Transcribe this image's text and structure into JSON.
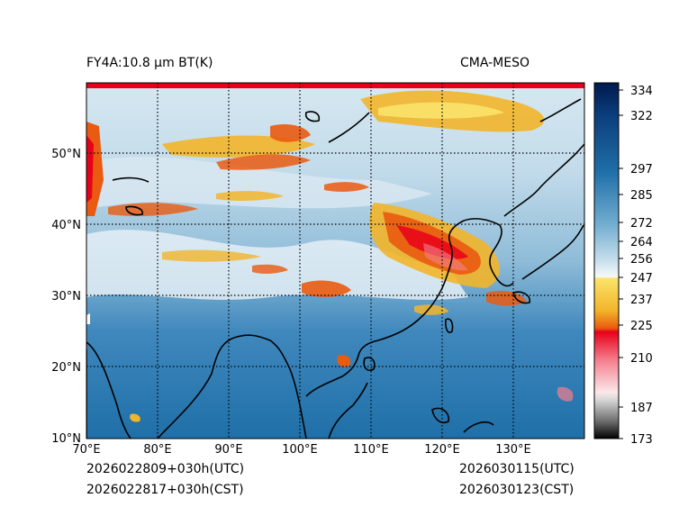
{
  "titles": {
    "left": "FY4A:10.8 µm BT(K)",
    "right": "CMA-MESO"
  },
  "map": {
    "lat_labels": [
      "50°N",
      "40°N",
      "30°N",
      "20°N",
      "10°N"
    ],
    "lon_labels": [
      "70°E",
      "80°E",
      "90°E",
      "100°E",
      "110°E",
      "120°E",
      "130°E"
    ],
    "lat_range": [
      10,
      60
    ],
    "lon_range": [
      70,
      139
    ]
  },
  "colorbar": {
    "ticks": [
      "334",
      "322",
      "297",
      "285",
      "272",
      "264",
      "256",
      "247",
      "237",
      "225",
      "210",
      "187",
      "173"
    ],
    "colors": {
      "navy": "#001a4d",
      "blue": "#1f6fa8",
      "light": "#eaf3f8",
      "yellow": "#f2b52a",
      "orange": "#ea5a10",
      "red": "#e8001a",
      "gray": "#888888",
      "black": "#000000"
    }
  },
  "footer": {
    "left_utc": "2026022809+030h(UTC)",
    "left_cst": "2026022817+030h(CST)",
    "right_utc": "2026030115(UTC)",
    "right_cst": "2026030123(CST)"
  }
}
